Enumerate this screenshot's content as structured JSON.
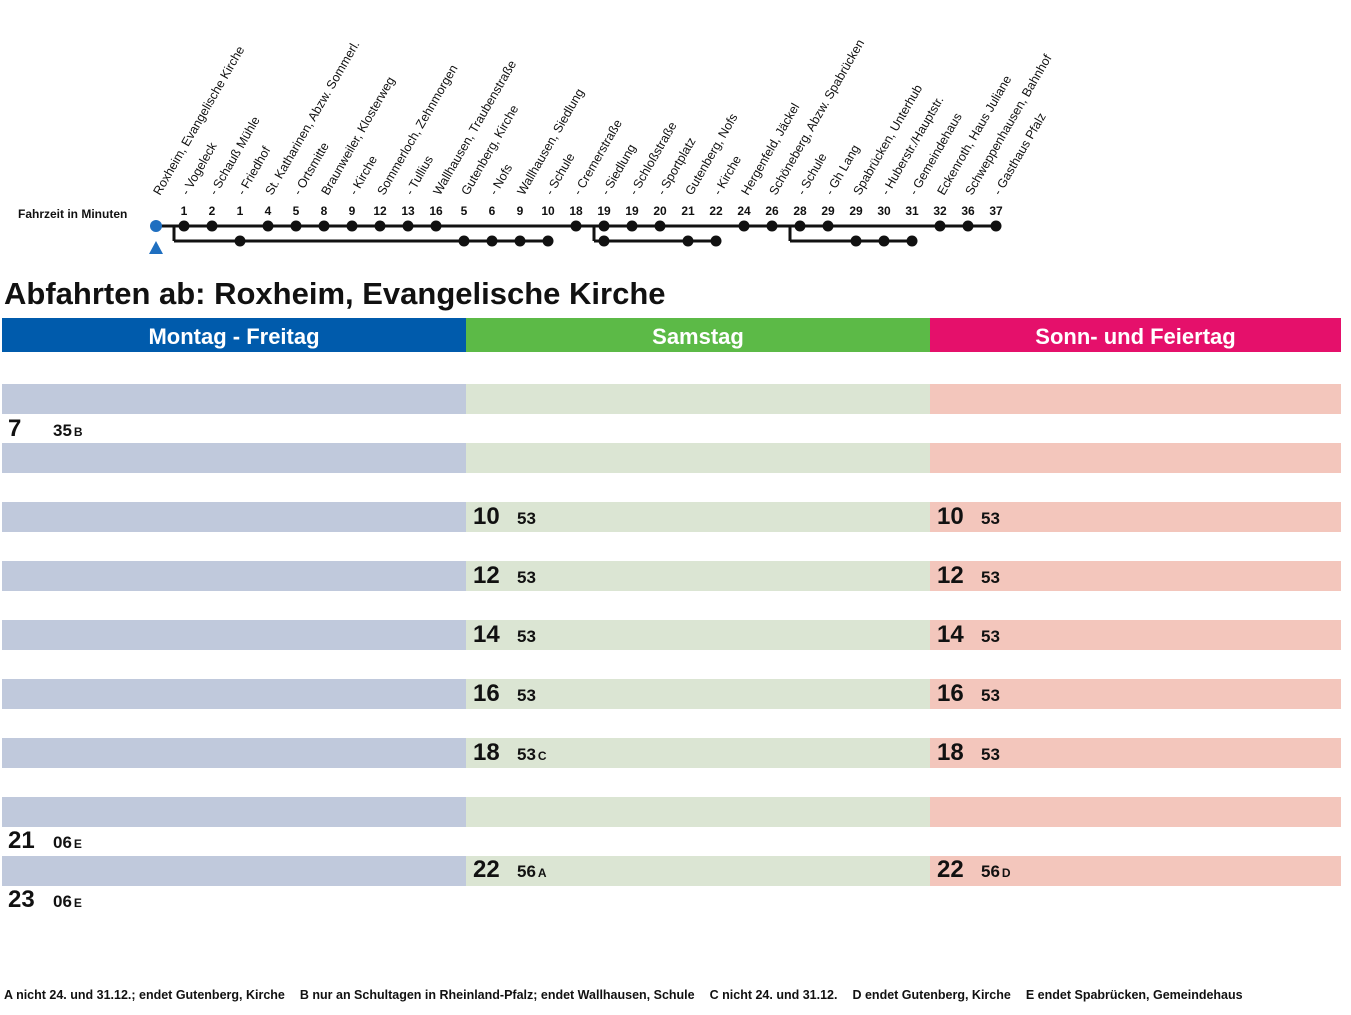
{
  "route": {
    "travel_time_label": "Fahrzeit in Minuten",
    "stops": [
      {
        "name": "Roxheim, Evangelische Kirche",
        "minute": ""
      },
      {
        "name": "- Vogeleck",
        "minute": "1"
      },
      {
        "name": "- Schauß Mühle",
        "minute": "2"
      },
      {
        "name": "- Friedhof",
        "minute": "1"
      },
      {
        "name": "St. Katharinen, Abzw. Sommerl.",
        "minute": "4"
      },
      {
        "name": "- Ortsmitte",
        "minute": "5"
      },
      {
        "name": "Braunweiler, Klosterweg",
        "minute": "8"
      },
      {
        "name": "- Kirche",
        "minute": "9"
      },
      {
        "name": "Sommerloch, Zehnmorgen",
        "minute": "12"
      },
      {
        "name": "- Tullius",
        "minute": "13"
      },
      {
        "name": "Wallhausen, Traubenstraße",
        "minute": "16"
      },
      {
        "name": "Gutenberg, Kirche",
        "minute": "5"
      },
      {
        "name": "- Nofs",
        "minute": "6"
      },
      {
        "name": "Wallhausen, Siedlung",
        "minute": "9"
      },
      {
        "name": "- Schule",
        "minute": "10"
      },
      {
        "name": "- Cremerstraße",
        "minute": "18"
      },
      {
        "name": "- Siedlung",
        "minute": "19"
      },
      {
        "name": "- Schloßstraße",
        "minute": "19"
      },
      {
        "name": "- Sportplatz",
        "minute": "20"
      },
      {
        "name": "Gutenberg, Nofs",
        "minute": "21"
      },
      {
        "name": "- Kirche",
        "minute": "22"
      },
      {
        "name": "Hergenfeld, Jäckel",
        "minute": "24"
      },
      {
        "name": "Schöneberg, Abzw. Spabrücken",
        "minute": "26"
      },
      {
        "name": "- Schule",
        "minute": "28"
      },
      {
        "name": "- Gh Lang",
        "minute": "29"
      },
      {
        "name": "Spabrücken, Unterhub",
        "minute": "29"
      },
      {
        "name": "- Huberstr./Hauptstr.",
        "minute": "30"
      },
      {
        "name": "- Gemeindehaus",
        "minute": "31"
      },
      {
        "name": "Eckenroth, Haus Juliane",
        "minute": "32"
      },
      {
        "name": "Schweppenhausen, Bahnhof",
        "minute": "36"
      },
      {
        "name": "- Gasthaus Pfalz",
        "minute": "37"
      }
    ]
  },
  "title": "Abfahrten ab: Roxheim, Evangelische Kirche",
  "days": [
    {
      "label": "Montag - Freitag",
      "color": "#005bac"
    },
    {
      "label": "Samstag",
      "color": "#5cba47"
    },
    {
      "label": "Sonn- und Feiertag",
      "color": "#e5106b"
    }
  ],
  "colors": {
    "stripe_weekday": "#c0c9dc",
    "stripe_saturday": "#dbe5d3",
    "stripe_sunday": "#f3c6bc"
  },
  "departures": [
    {
      "row": 1,
      "day": 0,
      "hour": "7",
      "minutes": "35",
      "note": "B"
    },
    {
      "row": 3,
      "day": 1,
      "hour": "10",
      "minutes": "53",
      "note": ""
    },
    {
      "row": 3,
      "day": 2,
      "hour": "10",
      "minutes": "53",
      "note": ""
    },
    {
      "row": 4,
      "day": 1,
      "hour": "12",
      "minutes": "53",
      "note": ""
    },
    {
      "row": 4,
      "day": 2,
      "hour": "12",
      "minutes": "53",
      "note": ""
    },
    {
      "row": 5,
      "day": 1,
      "hour": "14",
      "minutes": "53",
      "note": ""
    },
    {
      "row": 5,
      "day": 2,
      "hour": "14",
      "minutes": "53",
      "note": ""
    },
    {
      "row": 6,
      "day": 1,
      "hour": "16",
      "minutes": "53",
      "note": ""
    },
    {
      "row": 6,
      "day": 2,
      "hour": "16",
      "minutes": "53",
      "note": ""
    },
    {
      "row": 7,
      "day": 1,
      "hour": "18",
      "minutes": "53",
      "note": "C"
    },
    {
      "row": 7,
      "day": 2,
      "hour": "18",
      "minutes": "53",
      "note": ""
    },
    {
      "row": 8,
      "day": 0,
      "hour": "21",
      "minutes": "06",
      "note": "E"
    },
    {
      "row": 9,
      "day": 1,
      "hour": "22",
      "minutes": "56",
      "note": "A"
    },
    {
      "row": 9,
      "day": 2,
      "hour": "22",
      "minutes": "56",
      "note": "D"
    },
    {
      "row": 10,
      "day": 0,
      "hour": "23",
      "minutes": "06",
      "note": "E"
    }
  ],
  "footnotes": [
    {
      "key": "A",
      "text": "nicht 24. und 31.12.; endet Gutenberg, Kirche"
    },
    {
      "key": "B",
      "text": "nur an Schultagen in Rheinland-Pfalz; endet Wallhausen, Schule"
    },
    {
      "key": "C",
      "text": "nicht 24. und 31.12."
    },
    {
      "key": "D",
      "text": "endet Gutenberg, Kirche"
    },
    {
      "key": "E",
      "text": "endet Spabrücken, Gemeindehaus"
    }
  ]
}
